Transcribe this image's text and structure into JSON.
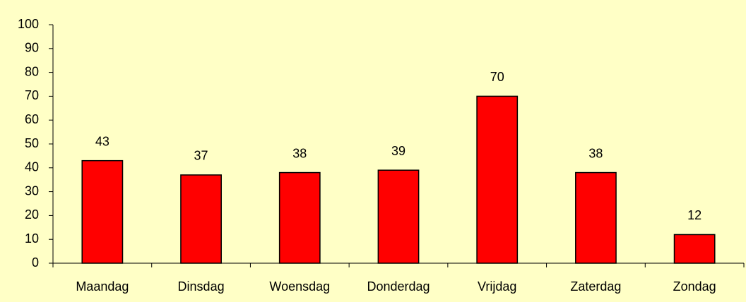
{
  "chart_data": {
    "type": "bar",
    "categories": [
      "Maandag",
      "Dinsdag",
      "Woensdag",
      "Donderdag",
      "Vrijdag",
      "Zaterdag",
      "Zondag"
    ],
    "values": [
      43,
      37,
      38,
      39,
      70,
      38,
      12
    ],
    "color": "#ff0000",
    "ylim": [
      0,
      100
    ],
    "yticks": [
      0,
      10,
      20,
      30,
      40,
      50,
      60,
      70,
      80,
      90,
      100
    ],
    "grid": false,
    "data_labels": true
  }
}
